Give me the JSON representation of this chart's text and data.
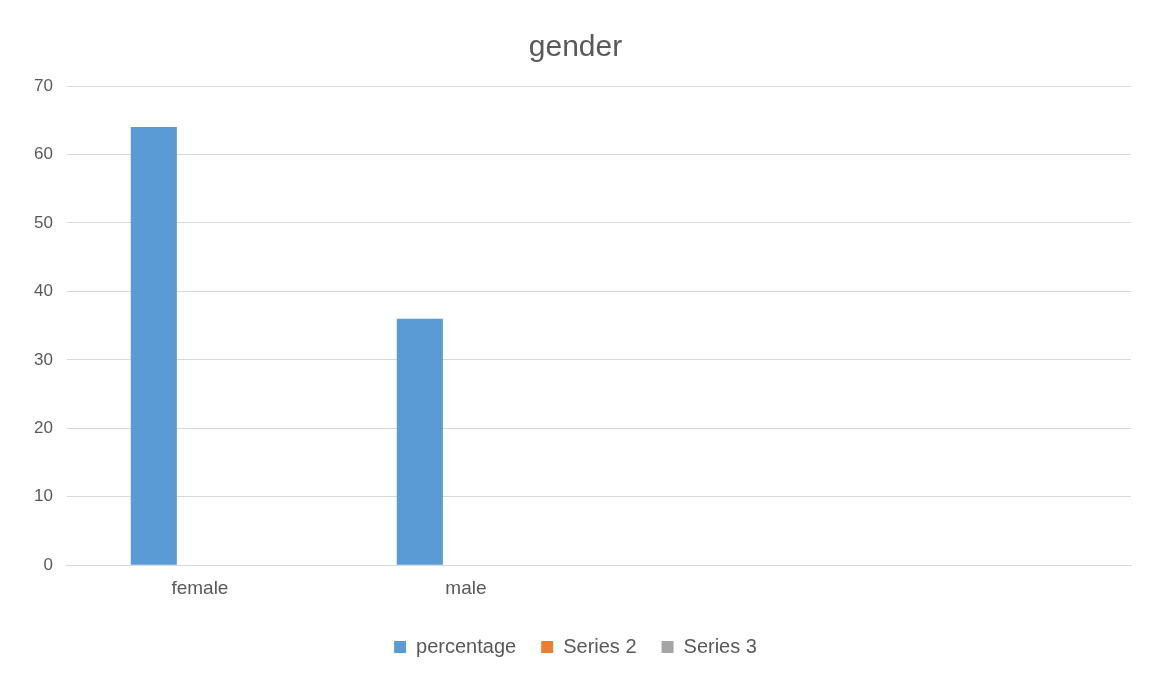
{
  "chart_data": {
    "type": "bar",
    "title": "gender",
    "categories": [
      "female",
      "male",
      null,
      null
    ],
    "series": [
      {
        "name": "percentage",
        "color": "#5b9bd5",
        "values": [
          64,
          36,
          null,
          null
        ]
      },
      {
        "name": "Series 2",
        "color": "#ed7d31",
        "values": [
          null,
          null,
          null,
          null
        ]
      },
      {
        "name": "Series 3",
        "color": "#a5a5a5",
        "values": [
          null,
          null,
          null,
          null
        ]
      }
    ],
    "ylim": [
      0,
      70
    ],
    "yticks": [
      0,
      10,
      20,
      30,
      40,
      50,
      60,
      70
    ],
    "grid": "y",
    "legend": "bottom"
  }
}
